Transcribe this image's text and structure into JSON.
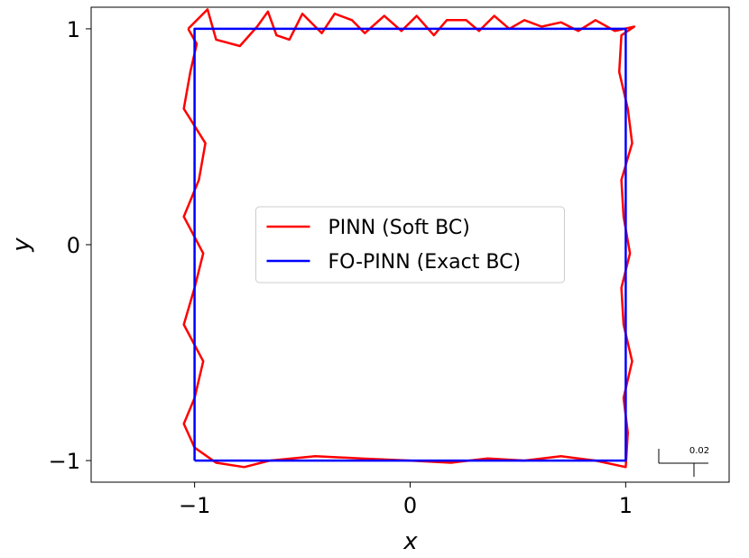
{
  "chart_data": {
    "type": "line",
    "x_label": "x",
    "y_label": "y",
    "xlim": [
      -1.48,
      1.48
    ],
    "ylim": [
      -1.1,
      1.1
    ],
    "xticks": [
      {
        "value": -1,
        "label": "−1"
      },
      0,
      1
    ],
    "yticks": [
      {
        "value": -1,
        "label": "−1"
      },
      0,
      1
    ],
    "legend": "center",
    "annotation": "0.02",
    "series": [
      {
        "name": "PINN (Soft BC)",
        "color": "#ff0000",
        "x": [
          -1.03,
          -0.94,
          -0.9,
          -0.79,
          -0.71,
          -0.66,
          -0.62,
          -0.56,
          -0.5,
          -0.41,
          -0.35,
          -0.27,
          -0.21,
          -0.12,
          -0.04,
          0.03,
          0.11,
          0.17,
          0.26,
          0.32,
          0.39,
          0.46,
          0.53,
          0.61,
          0.7,
          0.78,
          0.86,
          0.95,
          1.04,
          0.98,
          0.97,
          1.01,
          1.03,
          0.98,
          0.99,
          1.02,
          0.98,
          0.99,
          1.03,
          0.99,
          1.01,
          1.0,
          0.86,
          0.7,
          0.53,
          0.36,
          0.19,
          0,
          -0.23,
          -0.44,
          -0.65,
          -0.77,
          -0.9,
          -1.0,
          -1.05,
          -1.0,
          -0.96,
          -1.05,
          -1.0,
          -0.96,
          -1.05,
          -0.98,
          -0.95,
          -1.05,
          -1.02,
          -0.99,
          -1.03
        ],
        "y": [
          1.0,
          1.09,
          0.95,
          0.92,
          1.01,
          1.08,
          0.97,
          0.95,
          1.07,
          0.98,
          1.07,
          1.04,
          0.98,
          1.06,
          0.99,
          1.06,
          0.97,
          1.04,
          1.04,
          0.99,
          1.06,
          1.0,
          1.04,
          1.01,
          1.03,
          0.99,
          1.04,
          0.99,
          1.01,
          0.97,
          0.8,
          0.63,
          0.47,
          0.3,
          0.13,
          -0.04,
          -0.2,
          -0.37,
          -0.54,
          -0.71,
          -0.87,
          -1.03,
          -1.0,
          -0.98,
          -1.0,
          -0.99,
          -1.01,
          -1.0,
          -0.99,
          -0.98,
          -1.0,
          -1.03,
          -1.01,
          -0.94,
          -0.83,
          -0.71,
          -0.54,
          -0.37,
          -0.2,
          -0.04,
          0.13,
          0.3,
          0.47,
          0.63,
          0.8,
          0.93,
          1.0
        ]
      },
      {
        "name": "FO-PINN (Exact BC)",
        "color": "#0000ff",
        "x": [
          -1,
          1,
          1,
          -1,
          -1
        ],
        "y": [
          -1,
          -1,
          1,
          1,
          -1
        ]
      }
    ]
  }
}
